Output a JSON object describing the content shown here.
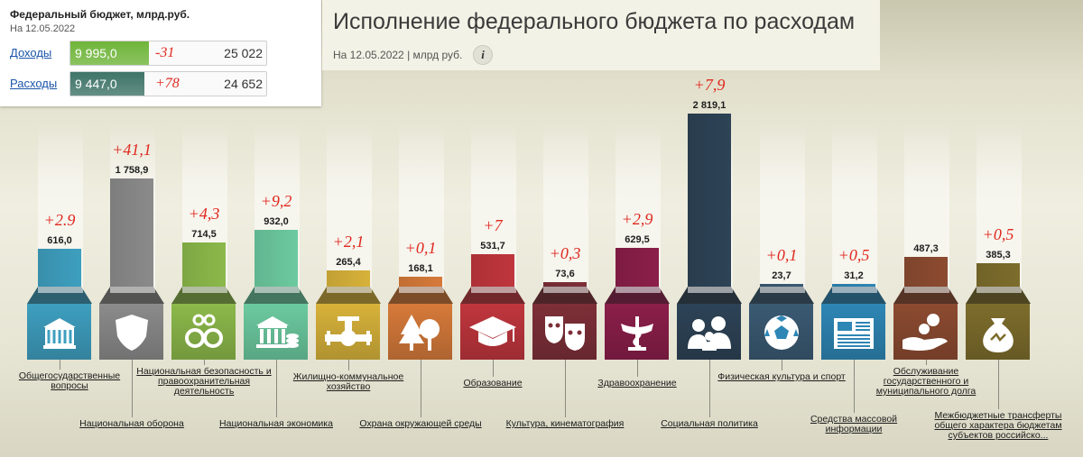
{
  "summary": {
    "title": "Федеральный бюджет, млрд.руб.",
    "date": "На 12.05.2022",
    "rows": [
      {
        "label": "Доходы",
        "value": "9 995,0",
        "delta": "-31",
        "plan": "25 022",
        "fill_fraction": 0.4,
        "color": "#6fb53a"
      },
      {
        "label": "Расходы",
        "value": "9 447,0",
        "delta": "+78",
        "plan": "24 652",
        "fill_fraction": 0.38,
        "color": "#3f7468"
      }
    ]
  },
  "header": {
    "title": "Исполнение федерального бюджета по расходам",
    "subtitle": "На 12.05.2022 | млрд руб.",
    "info_icon": "info-icon"
  },
  "chart_data": {
    "type": "bar",
    "title": "Исполнение федерального бюджета по расходам",
    "subtitle": "На 12.05.2022 | млрд руб.",
    "categories": [
      "Общегосударственные вопросы",
      "Национальная оборона",
      "Национальная безопасность и правоохранительная деятельность",
      "Национальная экономика",
      "Жилищно-коммунальное хозяйство",
      "Охрана окружающей среды",
      "Образование",
      "Культура, кинематография",
      "Здравоохранение",
      "Социальная политика",
      "Физическая культура и спорт",
      "Средства массовой информации",
      "Обслуживание государственного и муниципального долга",
      "Межбюджетные трансферты общего характера бюджетам субъектов российско..."
    ],
    "values": [
      616.0,
      1758.9,
      714.5,
      932.0,
      265.4,
      168.1,
      531.7,
      73.6,
      629.5,
      2819.1,
      23.7,
      31.2,
      487.3,
      385.3
    ],
    "value_labels": [
      "616,0",
      "1 758,9",
      "714,5",
      "932,0",
      "265,4",
      "168,1",
      "531,7",
      "73,6",
      "629,5",
      "2 819,1",
      "23,7",
      "31,2",
      "487,3",
      "385,3"
    ],
    "deltas": [
      "+2.9",
      "+41,1",
      "+4,3",
      "+9,2",
      "+2,1",
      "+0,1",
      "+7",
      "+0,3",
      "+2,9",
      "+7,9",
      "+0,1",
      "+0,5",
      "",
      "+0,5"
    ],
    "colors": [
      "#3e9fbf",
      "#8b8b8b",
      "#8cb94a",
      "#6ccaa0",
      "#d7b23a",
      "#d67a3a",
      "#c0363d",
      "#7e2f38",
      "#8b1f4a",
      "#2d4356",
      "#3a5a73",
      "#2e86b5",
      "#8c4b31",
      "#7d6d2c"
    ],
    "icons": [
      "government-building-icon",
      "shield-icon",
      "handcuffs-icon",
      "bank-coins-icon",
      "pipes-valve-icon",
      "trees-icon",
      "graduation-cap-icon",
      "theater-masks-icon",
      "medicine-caduceus-icon",
      "family-people-icon",
      "soccer-ball-icon",
      "newspaper-icon",
      "hand-coins-icon",
      "money-bag-icon"
    ],
    "ylim": [
      0,
      2819.1
    ],
    "legend": "none",
    "grid": false
  }
}
